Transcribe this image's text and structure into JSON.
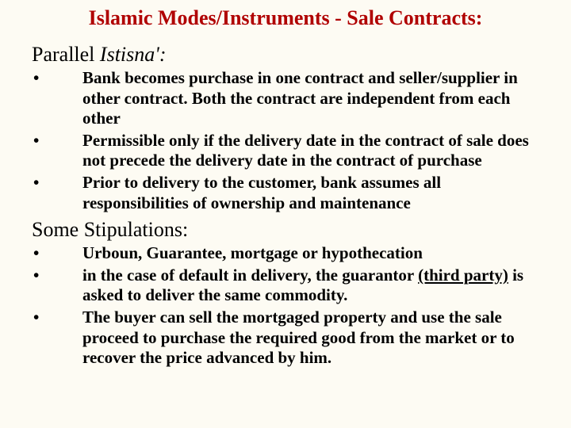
{
  "colors": {
    "background": "#fdfbf3",
    "title": "#b00000",
    "body": "#000000"
  },
  "typography": {
    "family": "Times New Roman",
    "title_size_pt": 26,
    "heading_size_pt": 26,
    "body_size_pt": 21,
    "body_weight": "bold"
  },
  "title": "Islamic Modes/Instruments - Sale Contracts:",
  "section1": {
    "heading_prefix": "Parallel ",
    "heading_italic": "Istisna':",
    "bullets": [
      "Bank becomes purchase in one contract and seller/supplier in other contract. Both the contract are independent from each other",
      "Permissible only if the delivery date in the contract of sale does not precede the delivery date in the contract of purchase",
      "Prior to delivery to the customer, bank assumes all responsibilities of ownership and maintenance"
    ]
  },
  "section2": {
    "heading": "Some Stipulations:",
    "bullets": [
      {
        "pre": "Urboun, Guarantee, mortgage or hypothecation"
      },
      {
        "pre": "in the case of default in delivery, the guarantor ",
        "underline": "(third party)",
        "post": " is asked to deliver the same commodity."
      },
      {
        "pre": "The buyer can sell the mortgaged property and use the sale proceed to purchase the required good from the market or to recover the price advanced by him."
      }
    ]
  }
}
